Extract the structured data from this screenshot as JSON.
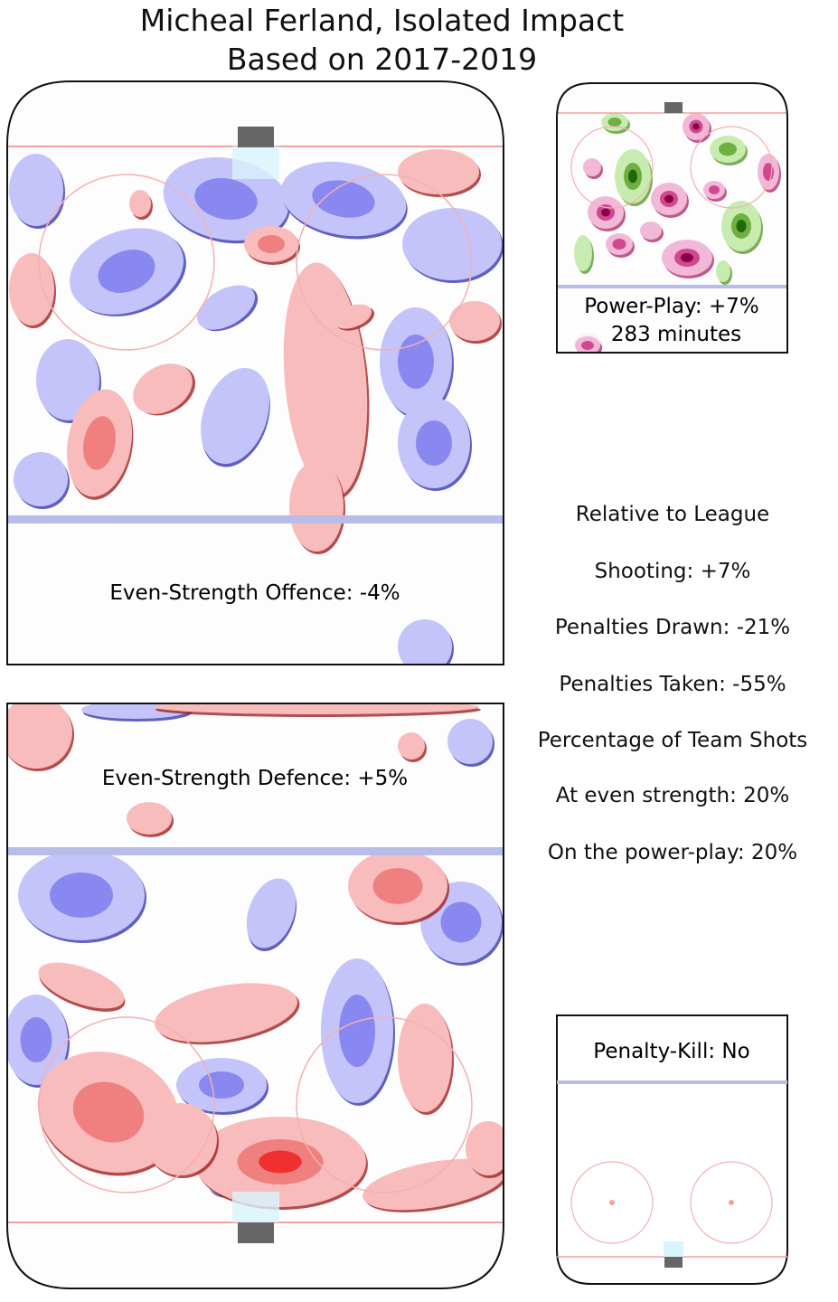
{
  "chart_data": {
    "type": "heatmap",
    "title": "Micheal Ferland, Isolated Impact",
    "subtitle": "Based on 2017-2019",
    "panels": [
      {
        "name": "even-strength-offence",
        "label": "Even-Strength Offence: -4%",
        "value_pct": -4
      },
      {
        "name": "even-strength-defence",
        "label": "Even-Strength Defence: +5%",
        "value_pct": 5
      },
      {
        "name": "power-play",
        "label": "Power-Play: +7%",
        "minutes_label": "283 minutes",
        "value_pct": 7,
        "minutes": 283
      },
      {
        "name": "penalty-kill",
        "label": "Penalty-Kill: No"
      }
    ],
    "summary": {
      "heading": "Relative to League",
      "lines": [
        "Shooting: +7%",
        "Penalties Drawn: -21%",
        "Penalties Taken: -55%",
        "Percentage of Team Shots",
        "At even strength: 20%",
        "On the power-play: 20%"
      ]
    },
    "colors": {
      "above_league": "#f06060",
      "below_league": "#6060e0",
      "pp_positive": "#2a7a10",
      "pp_negative": "#9a0050"
    }
  }
}
